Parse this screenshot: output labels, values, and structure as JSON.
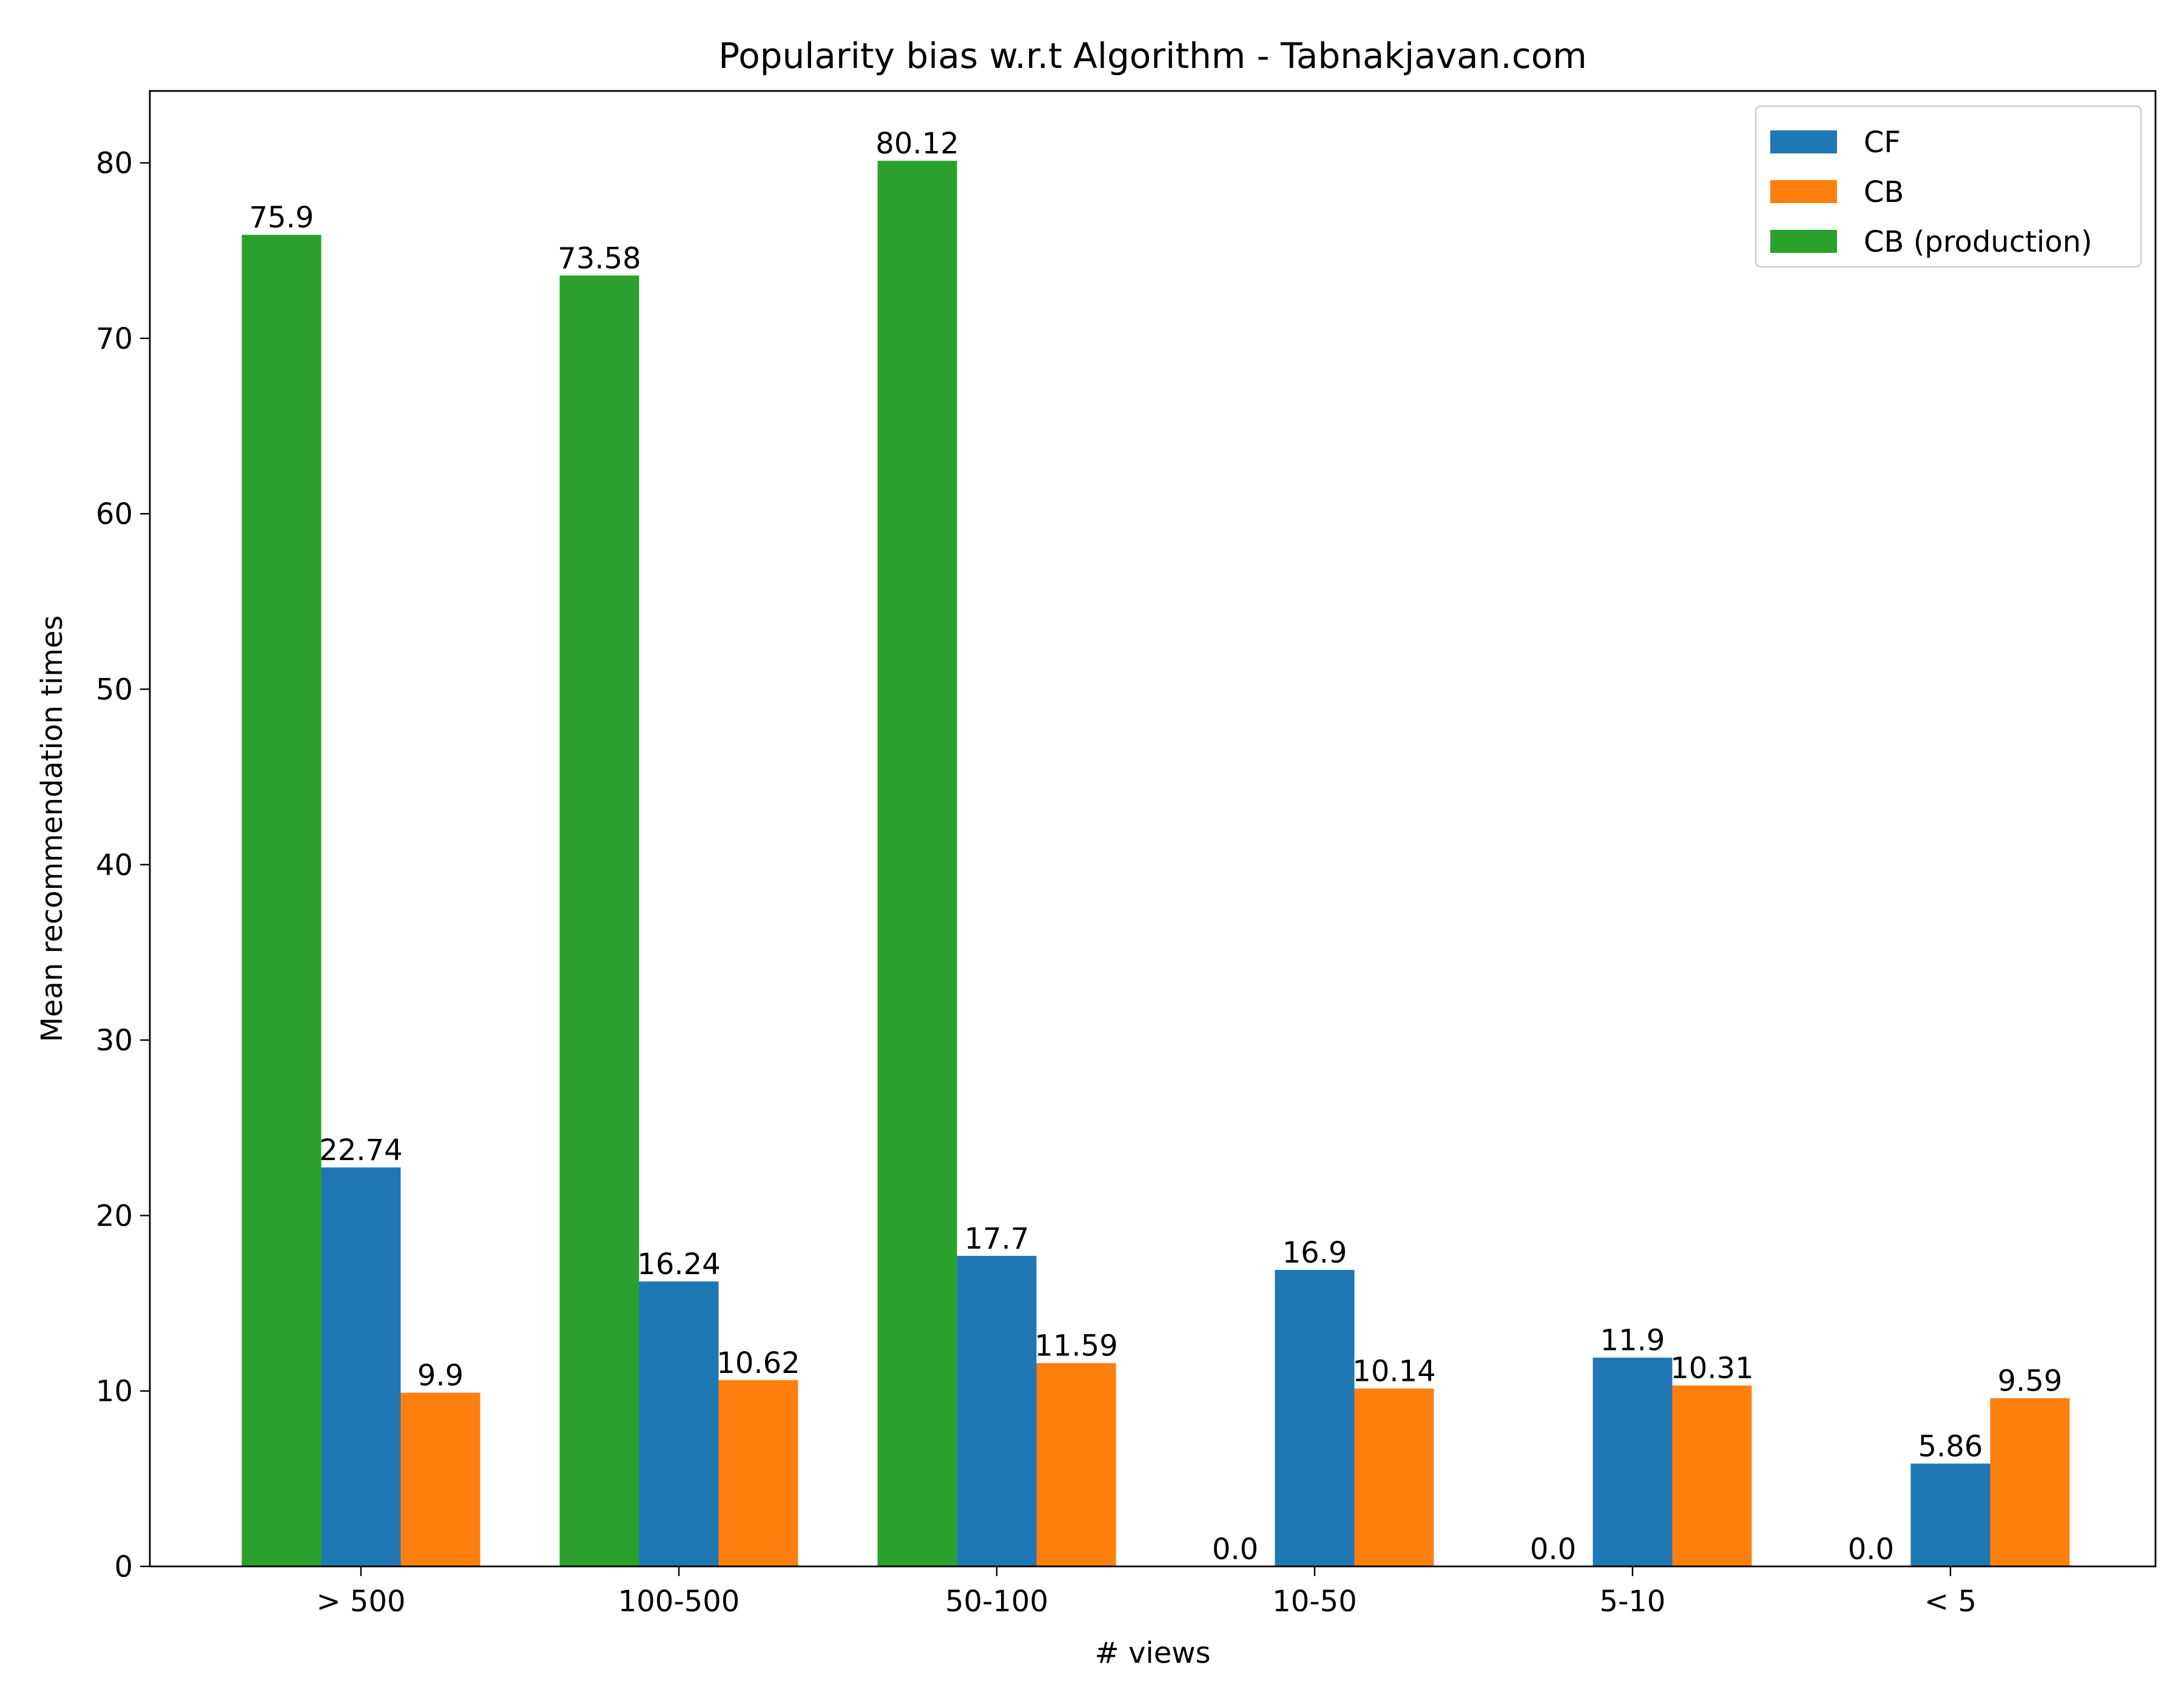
{
  "chart_data": {
    "type": "bar",
    "title": "Popularity bias w.r.t Algorithm - Tabnakjavan.com",
    "xlabel": "# views",
    "ylabel": "Mean recommendation times",
    "categories": [
      "> 500",
      "100-500",
      "50-100",
      "10-50",
      "5-10",
      "< 5"
    ],
    "series": [
      {
        "name": "CB (production)",
        "color": "#2ca02c",
        "values": [
          75.9,
          73.58,
          80.12,
          0.0,
          0.0,
          0.0
        ],
        "labels": [
          "75.9",
          "73.58",
          "80.12",
          "0.0",
          "0.0",
          "0.0"
        ]
      },
      {
        "name": "CF",
        "color": "#1f77b4",
        "values": [
          22.74,
          16.24,
          17.7,
          16.9,
          11.9,
          5.86
        ],
        "labels": [
          "22.74",
          "16.24",
          "17.7",
          "16.9",
          "11.9",
          "5.86"
        ]
      },
      {
        "name": "CB",
        "color": "#ff7f0e",
        "values": [
          9.9,
          10.62,
          11.59,
          10.14,
          10.31,
          9.59
        ],
        "labels": [
          "9.9",
          "10.62",
          "11.59",
          "10.14",
          "10.31",
          "9.59"
        ]
      }
    ],
    "legend_order": [
      "CF",
      "CB",
      "CB (production)"
    ],
    "legend_position": "top-right",
    "ylim": [
      0,
      84.1
    ],
    "yticks": [
      0,
      10,
      20,
      30,
      40,
      50,
      60,
      70,
      80
    ],
    "grid": false
  }
}
